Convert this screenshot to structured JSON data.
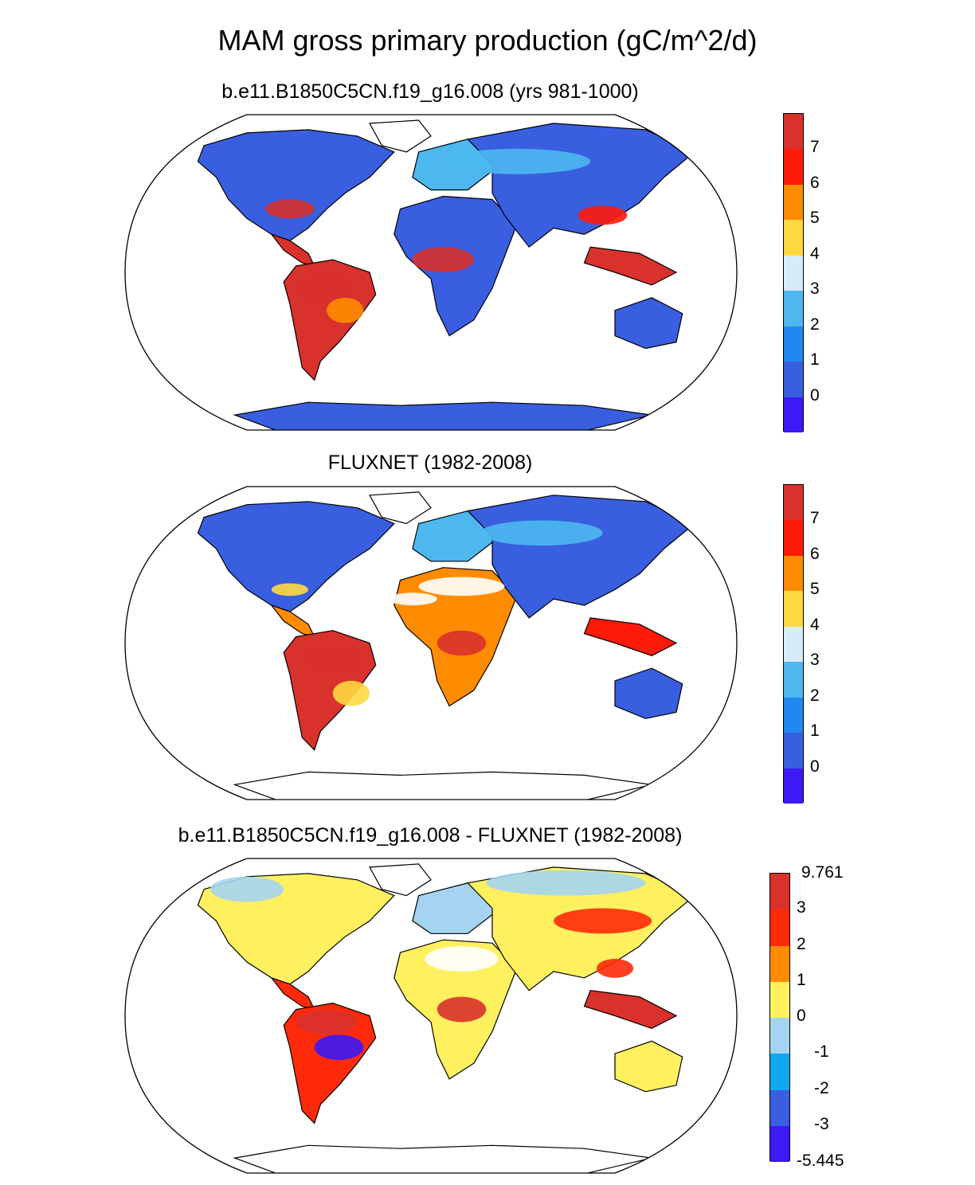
{
  "title": "MAM gross primary production (gC/m^2/d)",
  "panels": [
    {
      "id": "model",
      "subtitle": "b.e11.B1850C5CN.f19_g16.008 (yrs 981-1000)",
      "colorbar": {
        "colors": [
          "#3b1af5",
          "#3a5ee0",
          "#2088f0",
          "#4db8f0",
          "#d6ecf8",
          "#ffd940",
          "#ff8c00",
          "#ff1a0a",
          "#d9312b"
        ],
        "labels": [
          "0",
          "1",
          "2",
          "3",
          "4",
          "5",
          "6",
          "7"
        ],
        "end_labels": [
          "",
          ""
        ]
      }
    },
    {
      "id": "obs",
      "subtitle": "FLUXNET (1982-2008)",
      "colorbar": {
        "colors": [
          "#3b1af5",
          "#3a5ee0",
          "#2088f0",
          "#4db8f0",
          "#d6ecf8",
          "#ffd940",
          "#ff8c00",
          "#ff1a0a",
          "#d9312b"
        ],
        "labels": [
          "0",
          "1",
          "2",
          "3",
          "4",
          "5",
          "6",
          "7"
        ],
        "end_labels": [
          "",
          ""
        ]
      }
    },
    {
      "id": "diff",
      "subtitle": "b.e11.B1850C5CN.f19_g16.008 - FLUXNET (1982-2008)",
      "colorbar": {
        "colors": [
          "#3b1af5",
          "#3a5ee0",
          "#10a8f0",
          "#a4d4ef",
          "#fff060",
          "#ff8c00",
          "#ff2a0a",
          "#d9312b"
        ],
        "labels": [
          "-3",
          "-2",
          "-1",
          "0",
          "1",
          "2",
          "3"
        ],
        "end_labels": [
          "-5.445",
          "9.761"
        ]
      }
    }
  ]
}
